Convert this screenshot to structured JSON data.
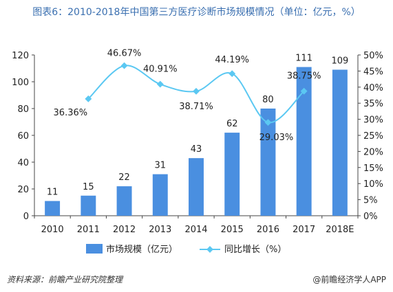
{
  "chart_title": "图表6：2010-2018年中国第三方医疗诊断市场规模情况（单位：亿元，%）",
  "colors": {
    "bar": "#4a8fe0",
    "line": "#5bc8f2",
    "title": "#3a6fb0"
  },
  "chart_data": {
    "type": "bar",
    "categories": [
      "2010",
      "2011",
      "2012",
      "2013",
      "2014",
      "2015",
      "2016",
      "2017",
      "2018E"
    ],
    "series": [
      {
        "name": "市场规模（亿元）",
        "type": "bar",
        "axis": "left",
        "values": [
          11,
          15,
          22,
          31,
          43,
          62,
          80,
          111,
          109
        ],
        "labels": [
          "11",
          "15",
          "22",
          "31",
          "43",
          "62",
          "80",
          "111",
          "109"
        ]
      },
      {
        "name": "同比增长（%）",
        "type": "line",
        "axis": "right",
        "values": [
          null,
          36.36,
          46.67,
          40.91,
          38.71,
          44.19,
          29.03,
          38.75,
          null
        ],
        "labels": [
          "",
          "36.36%",
          "46.67%",
          "40.91%",
          "38.71%",
          "44.19%",
          "29.03%",
          "38.75%",
          ""
        ]
      }
    ],
    "y_left": {
      "range": [
        0,
        120
      ],
      "ticks": [
        "0",
        "20",
        "40",
        "60",
        "80",
        "100",
        "120"
      ]
    },
    "y_right": {
      "range": [
        0,
        50
      ],
      "ticks": [
        "0%",
        "5%",
        "10%",
        "15%",
        "20%",
        "25%",
        "30%",
        "35%",
        "40%",
        "45%",
        "50%"
      ]
    },
    "grid": false,
    "legend": "bottom"
  },
  "footer": {
    "source": "资料来源：前瞻产业研究院整理",
    "brand": "@前瞻经济学人APP"
  }
}
